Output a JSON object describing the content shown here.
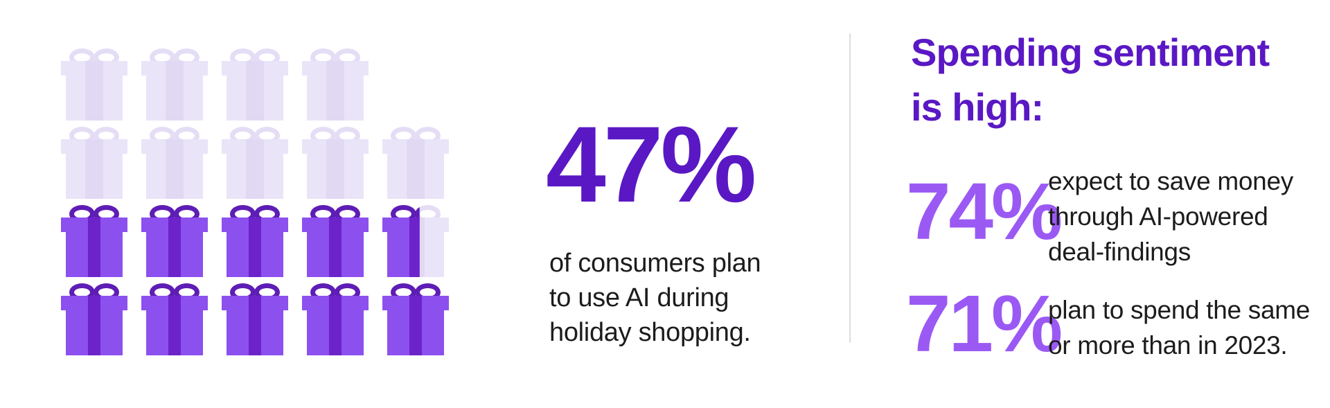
{
  "colors": {
    "background": "#FFFFFF",
    "deep_purple": "#5A18C4",
    "stat_purple": "#9B59F4",
    "text_dark": "#1C1C1C",
    "divider": "#DEDDE1",
    "gift_dark_body": "#8C50EF",
    "gift_dark_ribbon": "#6C23C9",
    "gift_dark_bow": "#5E1DB5",
    "gift_light_body": "#EAE4F8",
    "gift_light_ribbon": "#E1D9F3",
    "gift_light_bow": "#E4DDF5"
  },
  "pictogram": {
    "icon": "gift",
    "grid_rows": [
      [
        "light",
        "light",
        "light",
        "light",
        "none"
      ],
      [
        "light",
        "light",
        "light",
        "light",
        "light"
      ],
      [
        "dark",
        "dark",
        "dark",
        "dark",
        "partial"
      ],
      [
        "dark",
        "dark",
        "dark",
        "dark",
        "dark"
      ]
    ],
    "partial_fill_percent": 56
  },
  "main_stat": {
    "number": "47%",
    "caption_lines": [
      "of consumers plan",
      "to use AI during",
      "holiday shopping."
    ]
  },
  "spending": {
    "heading_lines": [
      "Spending sentiment",
      "is high:"
    ],
    "stats": [
      {
        "number": "74%",
        "caption_lines": [
          "expect to save money",
          "through AI-powered",
          "deal-findings"
        ]
      },
      {
        "number": "71%",
        "caption_lines": [
          "plan to spend the same",
          "or more than in 2023."
        ]
      }
    ]
  },
  "chart_data": [
    {
      "type": "pictogram",
      "title": "",
      "value": 47,
      "unit": "%",
      "label": "of consumers plan to use AI during holiday shopping.",
      "icon": "gift",
      "icons_shown": 19,
      "icons_highlighted": 9.56,
      "rows": 4,
      "columns": 5,
      "highlight_color": "#8C50EF",
      "muted_color": "#EAE4F8"
    },
    {
      "type": "stat",
      "value": 74,
      "unit": "%",
      "label": "expect to save money through AI-powered deal-findings"
    },
    {
      "type": "stat",
      "value": 71,
      "unit": "%",
      "label": "plan to spend the same or more than in 2023."
    }
  ]
}
